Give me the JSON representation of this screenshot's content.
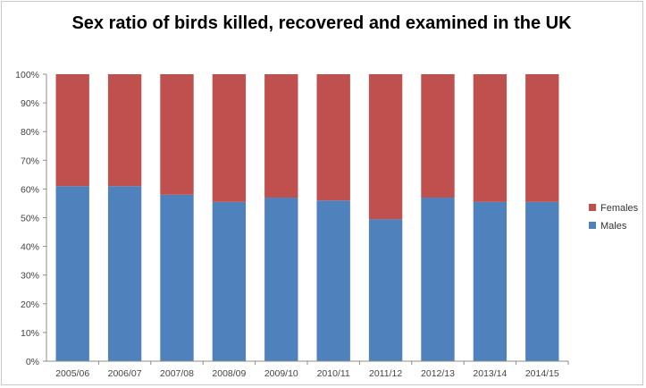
{
  "chart_data": {
    "type": "bar",
    "stacked": "percent",
    "title": "Sex ratio of birds killed, recovered and examined in the UK",
    "xlabel": "",
    "ylabel": "",
    "ylim": [
      0,
      100
    ],
    "y_tick_labels": [
      "0%",
      "10%",
      "20%",
      "30%",
      "40%",
      "50%",
      "60%",
      "70%",
      "80%",
      "90%",
      "100%"
    ],
    "grid": false,
    "legend_position": "right",
    "categories": [
      "2005/06",
      "2006/07",
      "2007/08",
      "2008/09",
      "2009/10",
      "2010/11",
      "2011/12",
      "2012/13",
      "2013/14",
      "2014/15"
    ],
    "series": [
      {
        "name": "Males",
        "color": "#4f81bd",
        "values": [
          61,
          61,
          58,
          55.5,
          57,
          56,
          49.5,
          57,
          55.5,
          55.5
        ]
      },
      {
        "name": "Females",
        "color": "#c0504d",
        "values": [
          39,
          39,
          42,
          44.5,
          43,
          44,
          50.5,
          43,
          44.5,
          44.5
        ]
      }
    ],
    "legend_order": [
      "Females",
      "Males"
    ]
  }
}
